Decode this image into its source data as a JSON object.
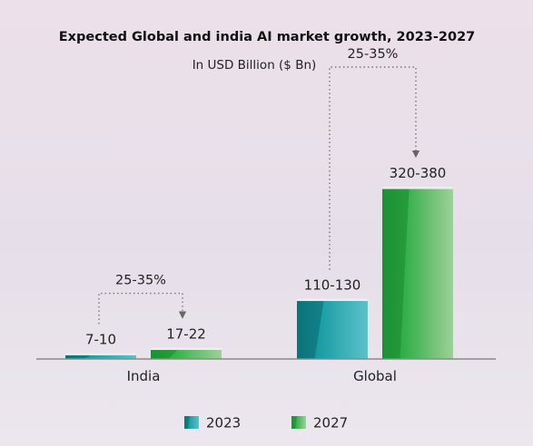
{
  "chart_data": {
    "type": "bar",
    "title": "Expected Global and india AI market growth, 2023-2027",
    "subtitle": "In USD Billion ($ Bn)",
    "categories": [
      "India",
      "Global"
    ],
    "series": [
      {
        "name": "2023",
        "values": [
          8.5,
          120
        ],
        "labels": [
          "7-10",
          "110-130"
        ]
      },
      {
        "name": "2027",
        "values": [
          19.5,
          350
        ],
        "labels": [
          "17-22",
          "320-380"
        ]
      }
    ],
    "growth_annotations": [
      "25-35%",
      "25-35%"
    ],
    "ylim": [
      0,
      350
    ],
    "grid": false,
    "legend": "bottom-center",
    "colors": {
      "2023": "#1a9aa0",
      "2027": "#3ab04a"
    }
  }
}
